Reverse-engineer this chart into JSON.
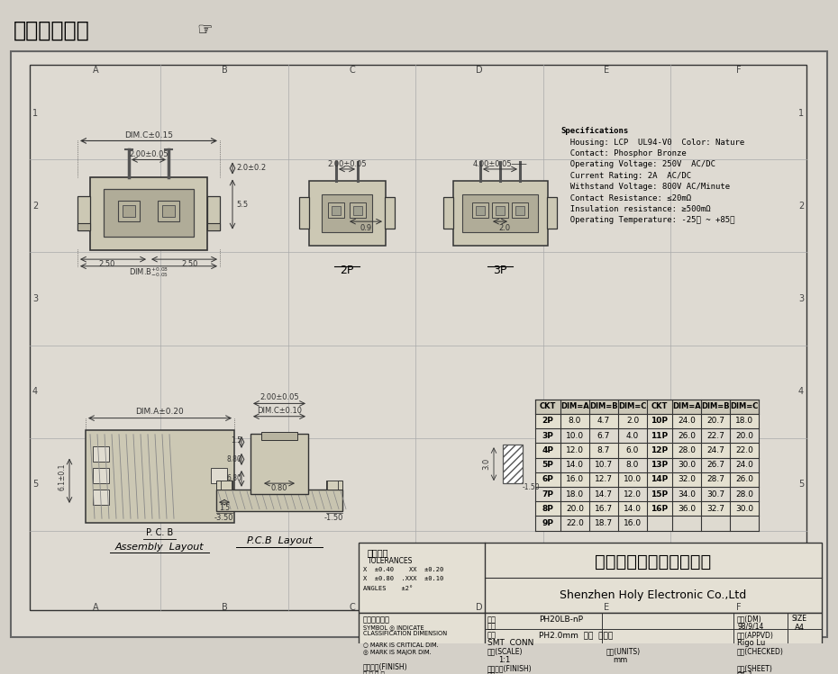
{
  "title": "在线图纸下载",
  "bg_color": "#d4d0c8",
  "drawing_bg": "#e0ddd4",
  "specifications": [
    "Specifications",
    "  Housing: LCP  UL94-V0  Color: Nature",
    "  Contact: Phosphor Bronze",
    "  Operating Voltage: 250V  AC/DC",
    "  Current Rating: 2A  AC/DC",
    "  Withstand Voltage: 800V AC/Minute",
    "  Contact Resistance: ≤20mΩ",
    "  Insulation resistance: ≥500mΩ",
    "  Operating Temperature: -25℃ ~ +85℃"
  ],
  "table_headers": [
    "CKT",
    "DIM=A",
    "DIM=B",
    "DIM=C",
    "CKT",
    "DIM=A",
    "DIM=B",
    "DIM=C"
  ],
  "table_data": [
    [
      "2P",
      "8.0",
      "4.7",
      "2.0",
      "10P",
      "24.0",
      "20.7",
      "18.0"
    ],
    [
      "3P",
      "10.0",
      "6.7",
      "4.0",
      "11P",
      "26.0",
      "22.7",
      "20.0"
    ],
    [
      "4P",
      "12.0",
      "8.7",
      "6.0",
      "12P",
      "28.0",
      "24.7",
      "22.0"
    ],
    [
      "5P",
      "14.0",
      "10.7",
      "8.0",
      "13P",
      "30.0",
      "26.7",
      "24.0"
    ],
    [
      "6P",
      "16.0",
      "12.7",
      "10.0",
      "14P",
      "32.0",
      "28.7",
      "26.0"
    ],
    [
      "7P",
      "18.0",
      "14.7",
      "12.0",
      "15P",
      "34.0",
      "30.7",
      "28.0"
    ],
    [
      "8P",
      "20.0",
      "16.7",
      "14.0",
      "16P",
      "36.0",
      "32.7",
      "30.0"
    ],
    [
      "9P",
      "22.0",
      "18.7",
      "16.0",
      "",
      "",
      "",
      ""
    ]
  ],
  "company_cn": "深圳市宏利电子有限公司",
  "company_en": "Shenzhen Holy Electronic Co.,Ltd",
  "tolerances_title": "一般公差",
  "tolerances_sub": "TOLERANCES",
  "tolerances_lines": [
    "X  ±0.40    XX  ±0.20",
    "X  ±0.80  .XXX  ±0.10",
    "ANGLES    ±2°"
  ],
  "col_labels": [
    "A",
    "B",
    "C",
    "D",
    "E",
    "F"
  ],
  "row_labels": [
    "1",
    "2",
    "3",
    "4",
    "5"
  ],
  "col_positions": [
    35,
    178,
    320,
    461,
    603,
    744,
    895
  ],
  "row_positions": [
    78,
    186,
    294,
    402,
    510,
    618,
    718
  ],
  "lc": "#333333"
}
